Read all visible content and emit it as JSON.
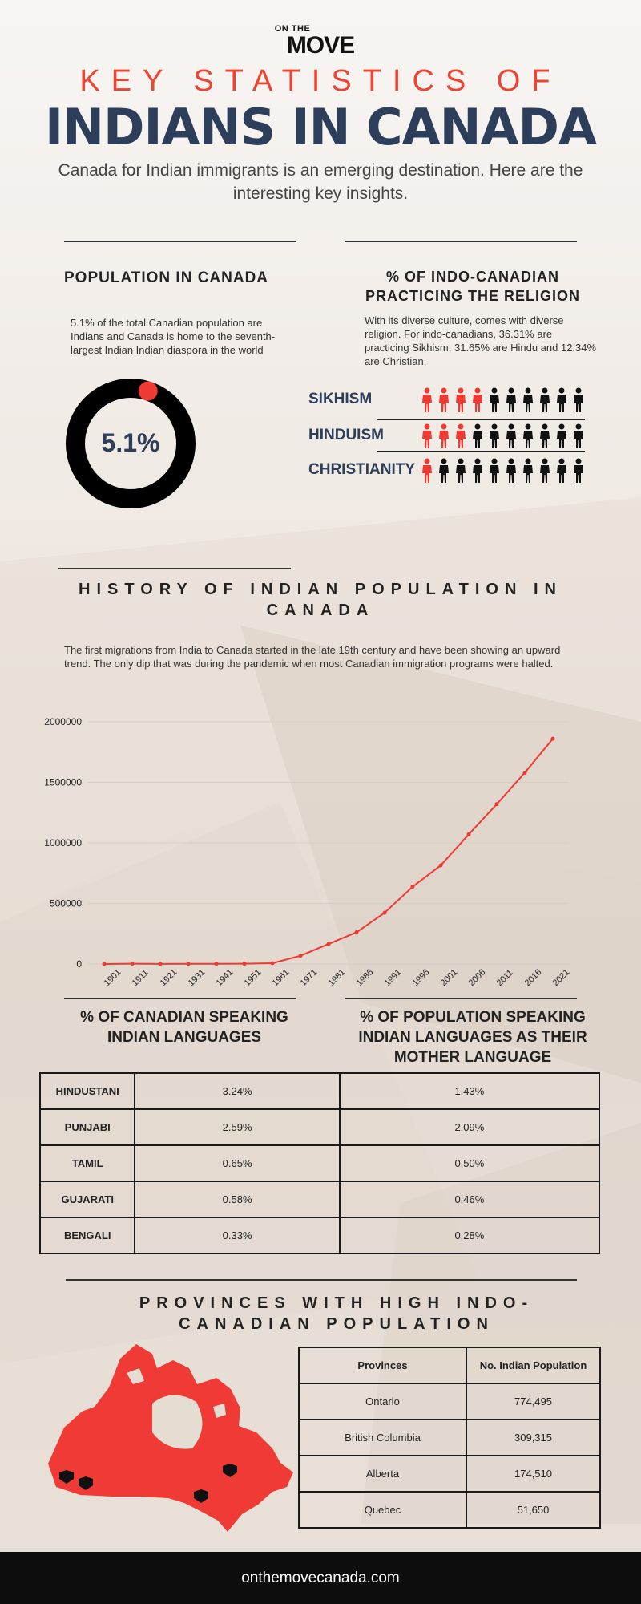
{
  "brand": {
    "logo_line1": "ON THE",
    "logo_line2": "MOVE"
  },
  "header": {
    "kicker": "KEY STATISTICS OF",
    "title": "INDIANS IN CANADA",
    "subtitle": "Canada for Indian immigrants is an emerging destination. Here are the interesting key insights."
  },
  "population": {
    "title": "POPULATION IN CANADA",
    "text": "5.1% of the total Canadian population are Indians and Canada is home to the seventh-largest Indian Indian diaspora in the world",
    "value_label": "5.1%",
    "percent": 5.1,
    "colors": {
      "ring": "#000000",
      "accent": "#ee3a33",
      "label": "#2c3e59"
    }
  },
  "religion": {
    "title": "% OF INDO-CANADIAN PRACTICING THE RELIGION",
    "text": "With its diverse culture, comes with diverse religion. For indo-canadians, 36.31% are practicing Sikhism, 31.65% are Hindu and 12.34% are Christian.",
    "rows": [
      {
        "label": "SIKHISM",
        "highlighted": 4,
        "total": 10
      },
      {
        "label": "HINDUISM",
        "highlighted": 3,
        "total": 10
      },
      {
        "label": "CHRISTIANITY",
        "highlighted": 1,
        "total": 10
      }
    ],
    "colors": {
      "highlight": "#ee3a33",
      "base": "#111111"
    }
  },
  "history": {
    "title": "HISTORY OF INDIAN POPULATION IN CANADA",
    "text": "The first migrations from India to Canada started in the late 19th century and have been showing an upward trend. The only dip that was during the pandemic when most Canadian immigration programs were halted."
  },
  "chart_data": {
    "type": "line",
    "title": "",
    "xlabel": "",
    "ylabel": "",
    "categories": [
      "1901",
      "1911",
      "1921",
      "1931",
      "1941",
      "1951",
      "1961",
      "1971",
      "1981",
      "1986",
      "1991",
      "1996",
      "2001",
      "2006",
      "2011",
      "2016",
      "2021"
    ],
    "series": [
      {
        "values": [
          100,
          2300,
          1000,
          1400,
          1500,
          2100,
          6800,
          67900,
          165000,
          262000,
          423000,
          638000,
          814000,
          1070000,
          1320000,
          1580000,
          1860000
        ]
      }
    ],
    "ylim": [
      0,
      2000000
    ],
    "yticks": [
      "0",
      "500000",
      "1000000",
      "1500000",
      "2000000"
    ],
    "grid": true,
    "colors": {
      "line": "#ee3a33",
      "grid": "#d6cfc8"
    }
  },
  "languages": {
    "title_left": "% OF CANADIAN SPEAKING INDIAN LANGUAGES",
    "title_right": "% OF POPULATION SPEAKING INDIAN LANGUAGES AS THEIR MOTHER LANGUAGE",
    "rows": [
      {
        "name": "HINDUSTANI",
        "speaking": "3.24%",
        "mother": "1.43%"
      },
      {
        "name": "PUNJABI",
        "speaking": "2.59%",
        "mother": "2.09%"
      },
      {
        "name": "TAMIL",
        "speaking": "0.65%",
        "mother": "0.50%"
      },
      {
        "name": "GUJARATI",
        "speaking": "0.58%",
        "mother": "0.46%"
      },
      {
        "name": "BENGALI",
        "speaking": "0.33%",
        "mother": "0.28%"
      }
    ]
  },
  "provinces": {
    "title": "PROVINCES WITH HIGH INDO-CANADIAN POPULATION",
    "headers": [
      "Provinces",
      "No. Indian Population"
    ],
    "rows": [
      {
        "province": "Ontario",
        "population": "774,495"
      },
      {
        "province": "British Columbia",
        "population": "309,315"
      },
      {
        "province": "Alberta",
        "population": "174,510"
      },
      {
        "province": "Quebec",
        "population": "51,650"
      }
    ],
    "map_icon": "canada-map-icon",
    "colors": {
      "map": "#f03a35"
    }
  },
  "footer": {
    "url": "onthemovecanada.com"
  }
}
